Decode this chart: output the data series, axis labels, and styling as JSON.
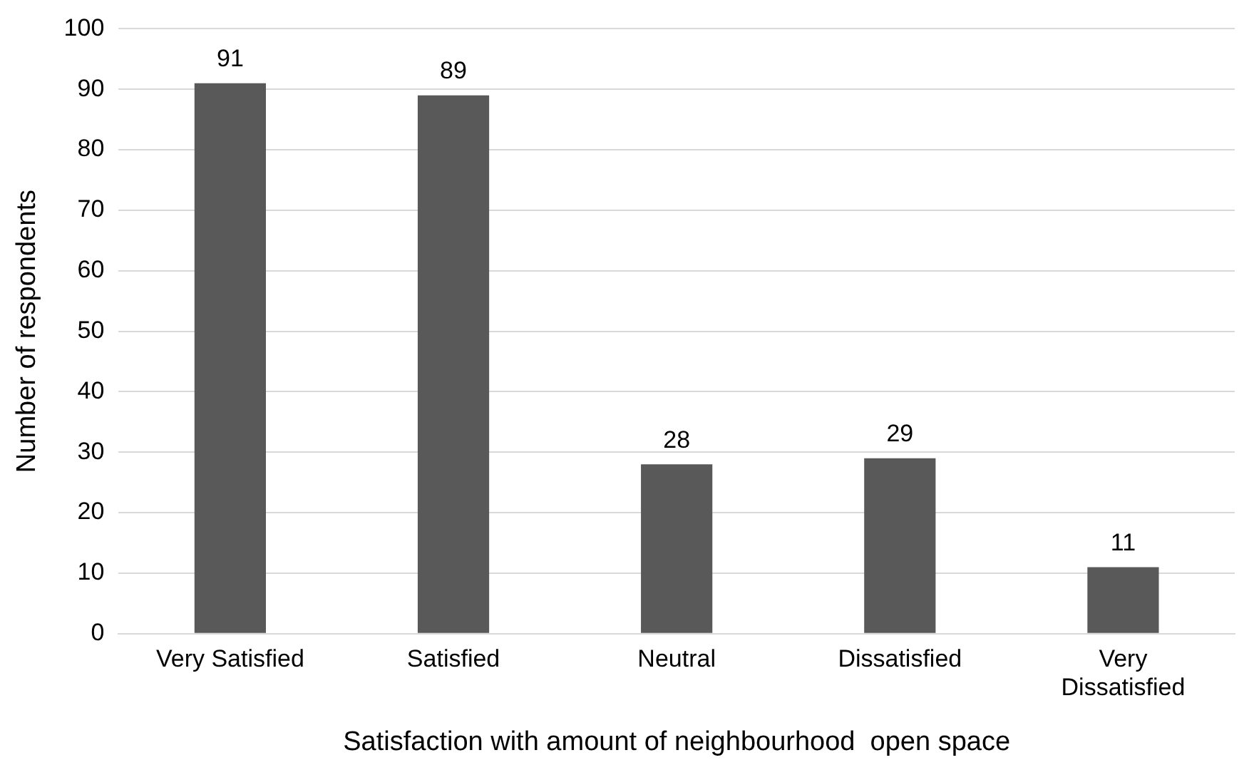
{
  "chart_data": {
    "type": "bar",
    "xlabel": "Satisfaction with amount of neighbourhood  open space",
    "ylabel": "Number of respondents",
    "categories": [
      "Very Satisfied",
      "Satisfied",
      "Neutral",
      "Dissatisfied",
      "Very Dissatisfied"
    ],
    "values": [
      91,
      89,
      28,
      29,
      11
    ],
    "color": "#595959",
    "ylim": [
      0,
      100
    ],
    "yticks": [
      0,
      10,
      20,
      30,
      40,
      50,
      60,
      70,
      80,
      90,
      100
    ],
    "grid": "y",
    "data_labels": true,
    "legend": false
  }
}
